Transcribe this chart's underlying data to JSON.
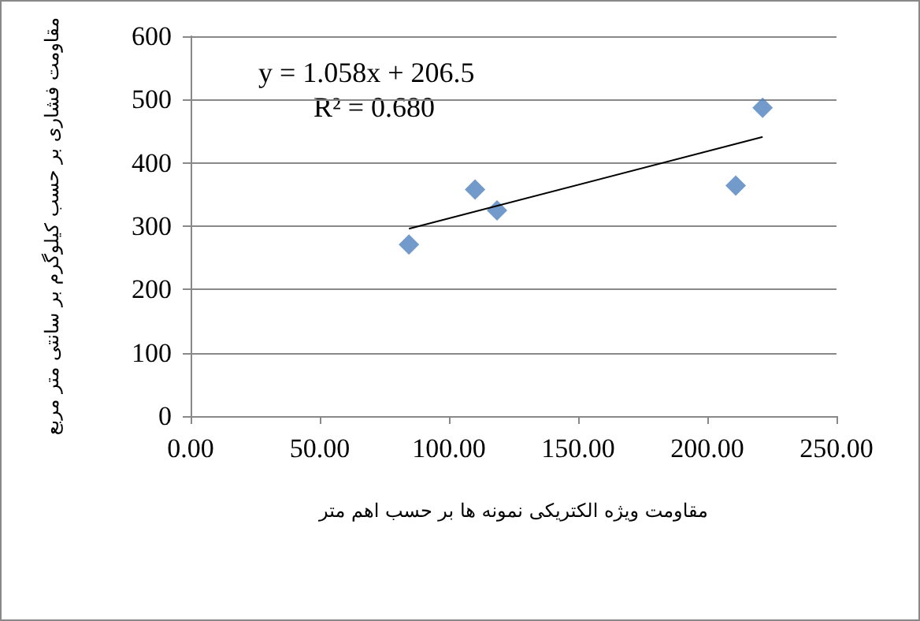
{
  "chart_data": {
    "type": "scatter",
    "xlabel": "مقاومت ویژه الکتریکی نمونه ها بر حسب اهم متر",
    "ylabel": "مقاومت فشاری بر حسب کیلوگرم بر سانتی متر مربع",
    "annotations": [
      "y = 1.058x + 206.5",
      "R² = 0.680"
    ],
    "series": [
      {
        "color": "#4f81bd",
        "marker": "diamond",
        "x": [
          84.5,
          110.1,
          118.6,
          211,
          221.4
        ],
        "values": [
          271,
          358,
          325,
          364,
          487
        ]
      },
      {
        "type": "line",
        "color": "#000000",
        "marker": "none",
        "x": [
          84.5,
          221.4
        ],
        "values": [
          296,
          441
        ]
      }
    ],
    "xlim": [
      0,
      250
    ],
    "xticks": [
      {
        "value": 0,
        "label": "0.00"
      },
      {
        "value": 50,
        "label": "50.00"
      },
      {
        "value": 100,
        "label": "100.00"
      },
      {
        "value": 150,
        "label": "150.00"
      },
      {
        "value": 200,
        "label": "200.00"
      },
      {
        "value": 250,
        "label": "250.00"
      }
    ],
    "ylim": [
      0,
      600
    ],
    "yticks": [
      0,
      100,
      200,
      300,
      400,
      500,
      600
    ],
    "grid": "y"
  }
}
